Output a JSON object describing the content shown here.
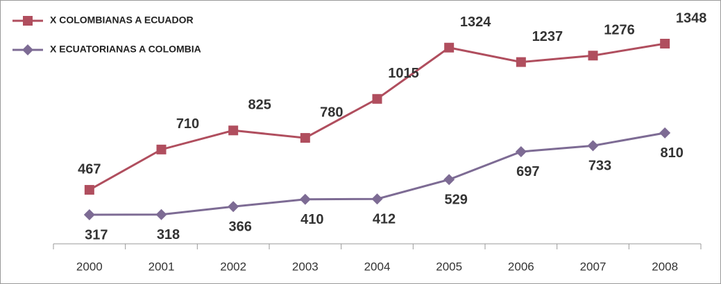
{
  "chart_data": {
    "type": "line",
    "categories": [
      "2000",
      "2001",
      "2002",
      "2003",
      "2004",
      "2005",
      "2006",
      "2007",
      "2008"
    ],
    "series": [
      {
        "name": "X COLOMBIANAS A ECUADOR",
        "color": "#b04e5e",
        "values": [
          467,
          710,
          825,
          780,
          1015,
          1324,
          1237,
          1276,
          1348
        ]
      },
      {
        "name": "X ECUATORIANAS A COLOMBIA",
        "color": "#7d6b94",
        "values": [
          317,
          318,
          366,
          410,
          412,
          529,
          697,
          733,
          810
        ]
      }
    ],
    "legend": "top-left"
  }
}
